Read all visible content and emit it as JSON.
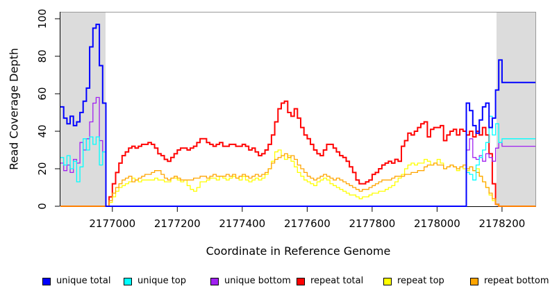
{
  "figure": {
    "ylabel": "Read Coverage Depth",
    "xlabel": "Coordinate in Reference Genome"
  },
  "legend": [
    {
      "label": "unique total",
      "color": "#0000FF"
    },
    {
      "label": "unique top",
      "color": "#00FFFF"
    },
    {
      "label": "unique bottom",
      "color": "#A020F0"
    },
    {
      "label": "repeat total",
      "color": "#FF0000"
    },
    {
      "label": "repeat top",
      "color": "#FFFF00"
    },
    {
      "label": "repeat bottom",
      "color": "#FFA500"
    }
  ],
  "chart_data": {
    "type": "line",
    "line_style": "step",
    "title": "",
    "xlabel": "Coordinate in Reference Genome",
    "ylabel": "Read Coverage Depth",
    "xlim": [
      2176840,
      2178305
    ],
    "ylim": [
      0,
      100
    ],
    "x_ticks": [
      2177000,
      2177200,
      2177400,
      2177600,
      2177800,
      2178000,
      2178200
    ],
    "y_ticks": [
      0,
      20,
      40,
      60,
      80,
      100
    ],
    "grid": false,
    "legend_position": "bottom",
    "box_color": "#999999",
    "shaded_regions": [
      {
        "x0": 2176840,
        "x1": 2176979,
        "color": "#DCDCDC"
      },
      {
        "x0": 2178183,
        "x1": 2178305,
        "color": "#DCDCDC"
      }
    ],
    "x": {
      "start": 2176840,
      "step": 10,
      "count": 147
    },
    "series": [
      {
        "name": "repeat total",
        "color": "#FF0000",
        "width": 2,
        "values": [
          0,
          0,
          0,
          0,
          0,
          0,
          0,
          0,
          0,
          0,
          0,
          0,
          0,
          0,
          0,
          5,
          12,
          18,
          23,
          27,
          29,
          31,
          32,
          31,
          32,
          33,
          33,
          34,
          33,
          31,
          28,
          27,
          25,
          24,
          26,
          28,
          30,
          31,
          31,
          30,
          31,
          32,
          34,
          36,
          36,
          34,
          33,
          32,
          33,
          34,
          32,
          32,
          33,
          33,
          32,
          32,
          33,
          32,
          30,
          31,
          29,
          27,
          28,
          30,
          33,
          38,
          45,
          52,
          55,
          56,
          50,
          48,
          52,
          47,
          42,
          38,
          36,
          33,
          30,
          28,
          27,
          30,
          33,
          33,
          31,
          29,
          27,
          26,
          24,
          21,
          18,
          14,
          12,
          12,
          13,
          14,
          17,
          18,
          20,
          22,
          23,
          24,
          23,
          25,
          24,
          32,
          35,
          39,
          38,
          40,
          42,
          44,
          45,
          37,
          41,
          42,
          42,
          43,
          35,
          38,
          40,
          41,
          38,
          41,
          40,
          38,
          40,
          37,
          40,
          38,
          42,
          38,
          28,
          12,
          1,
          0,
          0,
          0,
          0,
          0,
          0,
          0,
          0,
          0,
          0,
          0,
          0
        ]
      },
      {
        "name": "repeat top",
        "color": "#FFFF00",
        "width": 1.3,
        "values": [
          0,
          0,
          0,
          0,
          0,
          0,
          0,
          0,
          0,
          0,
          0,
          0,
          0,
          0,
          0,
          2,
          5,
          8,
          10,
          11,
          12,
          13,
          15,
          14,
          13,
          14,
          14,
          14,
          14,
          15,
          14,
          14,
          13,
          13,
          15,
          15,
          14,
          13,
          14,
          11,
          9,
          8,
          10,
          13,
          13,
          14,
          15,
          15,
          14,
          16,
          15,
          14,
          15,
          16,
          15,
          14,
          16,
          14,
          13,
          14,
          15,
          14,
          15,
          17,
          20,
          24,
          29,
          30,
          27,
          25,
          27,
          24,
          21,
          18,
          16,
          14,
          13,
          12,
          11,
          13,
          14,
          15,
          14,
          12,
          11,
          10,
          9,
          8,
          7,
          6,
          6,
          5,
          4,
          5,
          5,
          6,
          7,
          7,
          8,
          8,
          9,
          10,
          11,
          13,
          15,
          17,
          20,
          22,
          23,
          22,
          23,
          23,
          25,
          24,
          22,
          23,
          25,
          23,
          20,
          21,
          22,
          21,
          19,
          21,
          20,
          19,
          21,
          19,
          20,
          16,
          13,
          10,
          6,
          3,
          1,
          0,
          0,
          0,
          0,
          0,
          0,
          0,
          0,
          0,
          0,
          0,
          0
        ]
      },
      {
        "name": "repeat bottom",
        "color": "#FFA500",
        "width": 1.3,
        "values": [
          0,
          0,
          0,
          0,
          0,
          0,
          0,
          0,
          0,
          0,
          0,
          0,
          0,
          0,
          0,
          3,
          7,
          10,
          12,
          14,
          15,
          16,
          13,
          14,
          15,
          16,
          17,
          17,
          18,
          19,
          19,
          17,
          15,
          14,
          15,
          16,
          15,
          14,
          14,
          14,
          14,
          15,
          15,
          16,
          16,
          15,
          16,
          17,
          16,
          16,
          16,
          17,
          16,
          17,
          15,
          16,
          17,
          16,
          15,
          16,
          17,
          16,
          17,
          18,
          20,
          23,
          25,
          26,
          27,
          28,
          26,
          27,
          25,
          22,
          20,
          18,
          16,
          15,
          14,
          15,
          16,
          17,
          16,
          15,
          14,
          15,
          14,
          13,
          12,
          11,
          10,
          9,
          8,
          9,
          9,
          10,
          11,
          12,
          13,
          14,
          14,
          14,
          15,
          16,
          16,
          16,
          17,
          17,
          18,
          18,
          19,
          19,
          21,
          22,
          22,
          23,
          22,
          22,
          20,
          21,
          22,
          21,
          20,
          21,
          22,
          20,
          21,
          19,
          18,
          16,
          13,
          10,
          7,
          4,
          1,
          0,
          0,
          0,
          0,
          0,
          0,
          0,
          0,
          0,
          0,
          0,
          0
        ]
      },
      {
        "name": "unique bottom",
        "color": "#A020F0",
        "width": 1.3,
        "values": [
          23,
          19,
          22,
          18,
          25,
          23,
          34,
          30,
          36,
          45,
          55,
          58,
          35,
          29,
          0,
          0,
          0,
          0,
          0,
          0,
          0,
          0,
          0,
          0,
          0,
          0,
          0,
          0,
          0,
          0,
          0,
          0,
          0,
          0,
          0,
          0,
          0,
          0,
          0,
          0,
          0,
          0,
          0,
          0,
          0,
          0,
          0,
          0,
          0,
          0,
          0,
          0,
          0,
          0,
          0,
          0,
          0,
          0,
          0,
          0,
          0,
          0,
          0,
          0,
          0,
          0,
          0,
          0,
          0,
          0,
          0,
          0,
          0,
          0,
          0,
          0,
          0,
          0,
          0,
          0,
          0,
          0,
          0,
          0,
          0,
          0,
          0,
          0,
          0,
          0,
          0,
          0,
          0,
          0,
          0,
          0,
          0,
          0,
          0,
          0,
          0,
          0,
          0,
          0,
          0,
          0,
          0,
          0,
          0,
          0,
          0,
          0,
          0,
          0,
          0,
          0,
          0,
          0,
          0,
          0,
          0,
          0,
          0,
          0,
          0,
          30,
          36,
          26,
          25,
          27,
          24,
          28,
          26,
          24,
          31,
          34,
          32
        ]
      },
      {
        "name": "unique top",
        "color": "#00FFFF",
        "width": 1.3,
        "values": [
          26,
          22,
          27,
          20,
          24,
          13,
          21,
          36,
          30,
          37,
          33,
          37,
          22,
          29,
          0,
          0,
          0,
          0,
          0,
          0,
          0,
          0,
          0,
          0,
          0,
          0,
          0,
          0,
          0,
          0,
          0,
          0,
          0,
          0,
          0,
          0,
          0,
          0,
          0,
          0,
          0,
          0,
          0,
          0,
          0,
          0,
          0,
          0,
          0,
          0,
          0,
          0,
          0,
          0,
          0,
          0,
          0,
          0,
          0,
          0,
          0,
          0,
          0,
          0,
          0,
          0,
          0,
          0,
          0,
          0,
          0,
          0,
          0,
          0,
          0,
          0,
          0,
          0,
          0,
          0,
          0,
          0,
          0,
          0,
          0,
          0,
          0,
          0,
          0,
          0,
          0,
          0,
          0,
          0,
          0,
          0,
          0,
          0,
          0,
          0,
          0,
          0,
          0,
          0,
          0,
          0,
          0,
          0,
          0,
          0,
          0,
          0,
          0,
          0,
          0,
          0,
          0,
          0,
          0,
          0,
          0,
          0,
          0,
          0,
          0,
          18,
          17,
          14,
          22,
          26,
          30,
          34,
          48,
          38,
          44,
          34,
          36
        ]
      },
      {
        "name": "unique total",
        "color": "#0000FF",
        "width": 2,
        "values": [
          53,
          47,
          44,
          48,
          43,
          45,
          50,
          56,
          63,
          85,
          95,
          97,
          75,
          55,
          0,
          0,
          0,
          0,
          0,
          0,
          0,
          0,
          0,
          0,
          0,
          0,
          0,
          0,
          0,
          0,
          0,
          0,
          0,
          0,
          0,
          0,
          0,
          0,
          0,
          0,
          0,
          0,
          0,
          0,
          0,
          0,
          0,
          0,
          0,
          0,
          0,
          0,
          0,
          0,
          0,
          0,
          0,
          0,
          0,
          0,
          0,
          0,
          0,
          0,
          0,
          0,
          0,
          0,
          0,
          0,
          0,
          0,
          0,
          0,
          0,
          0,
          0,
          0,
          0,
          0,
          0,
          0,
          0,
          0,
          0,
          0,
          0,
          0,
          0,
          0,
          0,
          0,
          0,
          0,
          0,
          0,
          0,
          0,
          0,
          0,
          0,
          0,
          0,
          0,
          0,
          0,
          0,
          0,
          0,
          0,
          0,
          0,
          0,
          0,
          0,
          0,
          0,
          0,
          0,
          0,
          0,
          0,
          0,
          0,
          0,
          55,
          51,
          43,
          39,
          46,
          53,
          55,
          42,
          47,
          62,
          78,
          66
        ]
      }
    ]
  }
}
